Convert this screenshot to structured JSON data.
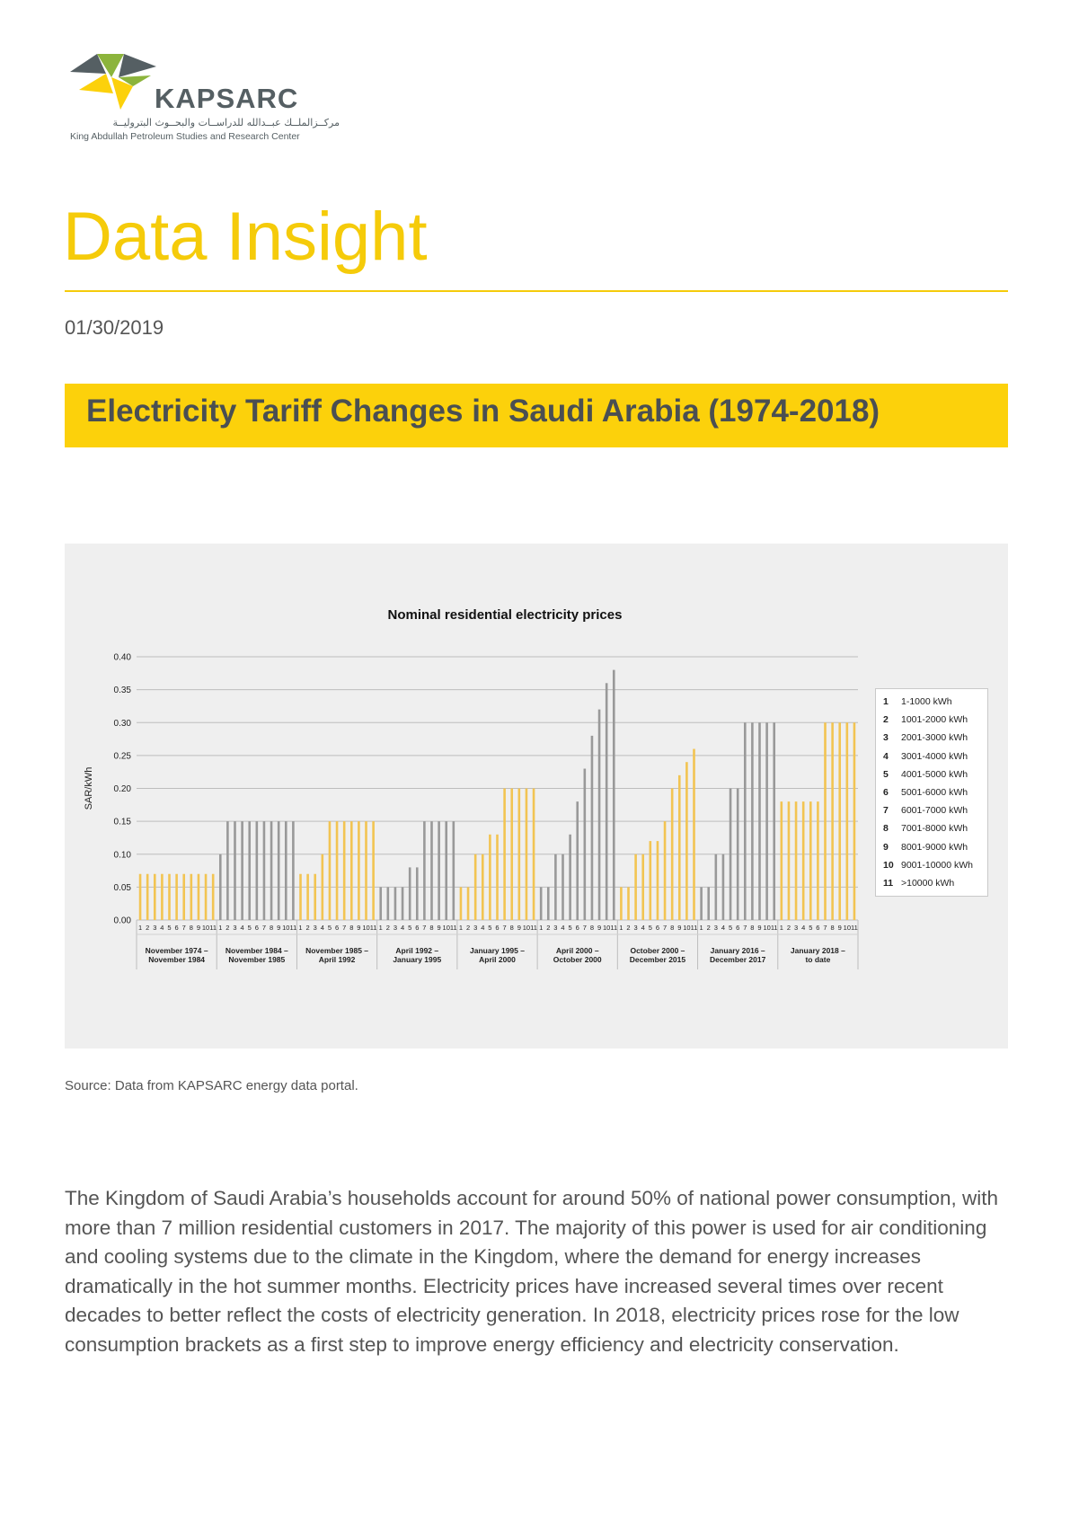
{
  "brand": {
    "name": "KAPSARC",
    "arabic_name": "مركــزالملــك عبــدالله للدراســات والبحــوث البتروليــة",
    "english_name": "King Abdullah Petroleum Studies and Research Center",
    "colors": {
      "yellow": "#fcd10b",
      "gray": "#555f63",
      "green": "#8cb43c"
    }
  },
  "document": {
    "type": "Data Insight",
    "date": "01/30/2019",
    "title": "Electricity Tariff Changes in Saudi Arabia (1974-2018)",
    "source": "Source: Data from KAPSARC energy data portal.",
    "body": "The Kingdom of Saudi Arabia’s households account for around 50% of national power consumption, with more than 7 million residential customers in 2017. The majority of this power is used for air conditioning and cooling systems due to the climate in the Kingdom, where the demand for energy increases dramatically in the hot summer months. Electricity prices have increased several times over recent decades to better reflect the costs of electricity generation. In 2018, electricity prices rose for the low consumption brackets as a first step to improve energy efficiency and electricity conservation."
  },
  "chart_data": {
    "type": "bar",
    "title": "Nominal residential electricity prices",
    "ylabel": "SAR/kWh",
    "xlabel": "",
    "ylim": [
      0,
      0.4
    ],
    "yticks": [
      "0.00",
      "0.05",
      "0.10",
      "0.15",
      "0.20",
      "0.25",
      "0.30",
      "0.35",
      "0.40"
    ],
    "grid": true,
    "legend_position": "right",
    "bracket_labels": [
      "1",
      "2",
      "3",
      "4",
      "5",
      "6",
      "7",
      "8",
      "9",
      "10",
      "11"
    ],
    "brackets": [
      {
        "num": "1",
        "label": "1-1000 kWh"
      },
      {
        "num": "2",
        "label": "1001-2000 kWh"
      },
      {
        "num": "3",
        "label": "2001-3000 kWh"
      },
      {
        "num": "4",
        "label": "3001-4000 kWh"
      },
      {
        "num": "5",
        "label": "4001-5000 kWh"
      },
      {
        "num": "6",
        "label": "5001-6000 kWh"
      },
      {
        "num": "7",
        "label": "6001-7000 kWh"
      },
      {
        "num": "8",
        "label": "7001-8000 kWh"
      },
      {
        "num": "9",
        "label": "8001-9000 kWh"
      },
      {
        "num": "10",
        "label": "9001-10000 kWh"
      },
      {
        "num": "11",
        "label": ">10000 kWh"
      }
    ],
    "colors": {
      "yellow": "#f2c452",
      "gray": "#999999"
    },
    "periods": [
      {
        "label": [
          "November 1974 –",
          "November 1984"
        ],
        "color": "yellow",
        "values": [
          0.07,
          0.07,
          0.07,
          0.07,
          0.07,
          0.07,
          0.07,
          0.07,
          0.07,
          0.07,
          0.07
        ]
      },
      {
        "label": [
          "November 1984 –",
          "November 1985"
        ],
        "color": "gray",
        "values": [
          0.1,
          0.15,
          0.15,
          0.15,
          0.15,
          0.15,
          0.15,
          0.15,
          0.15,
          0.15,
          0.15
        ]
      },
      {
        "label": [
          "November 1985 –",
          "April 1992"
        ],
        "color": "yellow",
        "values": [
          0.07,
          0.07,
          0.07,
          0.1,
          0.15,
          0.15,
          0.15,
          0.15,
          0.15,
          0.15,
          0.15
        ]
      },
      {
        "label": [
          "April 1992 –",
          "January 1995"
        ],
        "color": "gray",
        "values": [
          0.05,
          0.05,
          0.05,
          0.05,
          0.08,
          0.08,
          0.15,
          0.15,
          0.15,
          0.15,
          0.15
        ]
      },
      {
        "label": [
          "January 1995 –",
          "April 2000"
        ],
        "color": "yellow",
        "values": [
          0.05,
          0.05,
          0.1,
          0.1,
          0.13,
          0.13,
          0.2,
          0.2,
          0.2,
          0.2,
          0.2
        ]
      },
      {
        "label": [
          "April 2000 –",
          "October 2000"
        ],
        "color": "gray",
        "values": [
          0.05,
          0.05,
          0.1,
          0.1,
          0.13,
          0.18,
          0.23,
          0.28,
          0.32,
          0.36,
          0.38
        ]
      },
      {
        "label": [
          "October 2000 –",
          "December 2015"
        ],
        "color": "yellow",
        "values": [
          0.05,
          0.05,
          0.1,
          0.1,
          0.12,
          0.12,
          0.15,
          0.2,
          0.22,
          0.24,
          0.26
        ]
      },
      {
        "label": [
          "January 2016 –",
          "December 2017"
        ],
        "color": "gray",
        "values": [
          0.05,
          0.05,
          0.1,
          0.1,
          0.2,
          0.2,
          0.3,
          0.3,
          0.3,
          0.3,
          0.3
        ]
      },
      {
        "label": [
          "January 2018 –",
          "to date"
        ],
        "color": "yellow",
        "values": [
          0.18,
          0.18,
          0.18,
          0.18,
          0.18,
          0.18,
          0.3,
          0.3,
          0.3,
          0.3,
          0.3
        ]
      }
    ]
  }
}
